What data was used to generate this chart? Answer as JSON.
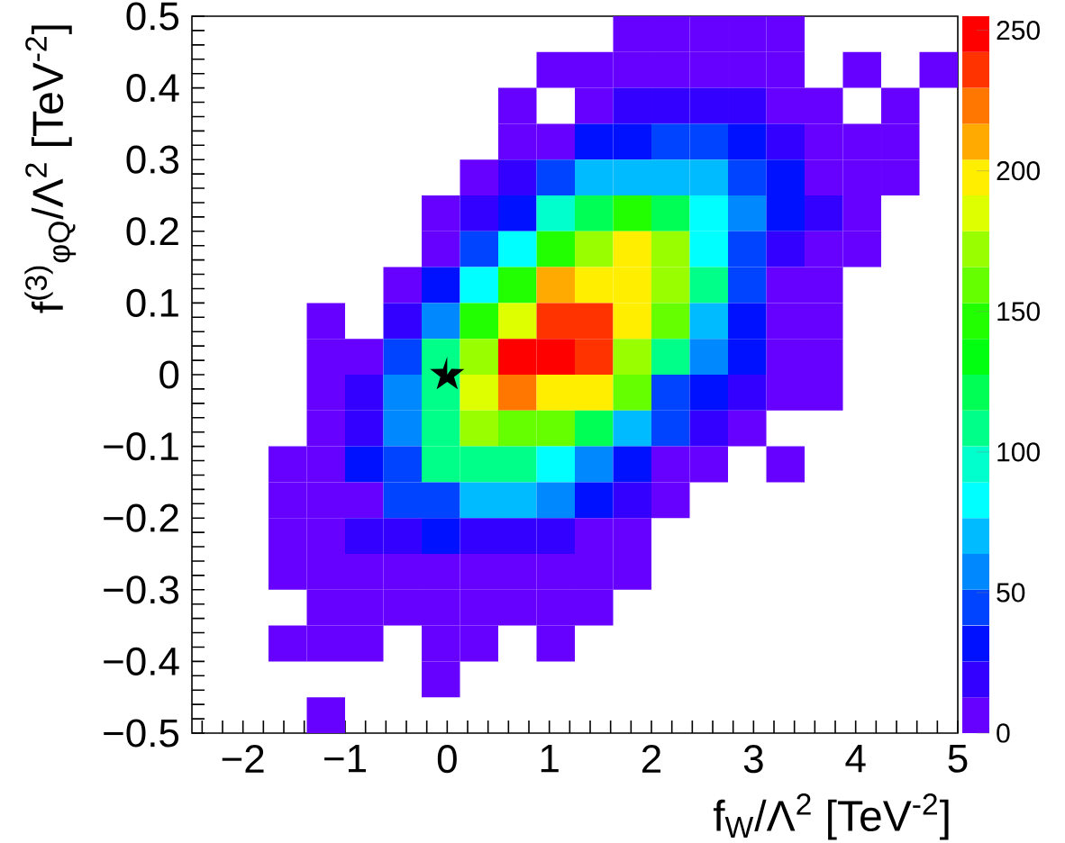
{
  "chart_data": {
    "type": "heatmap",
    "xlabel": "f$_{W}$/Λ$^{2}$ [TeV$^{-2}$]",
    "ylabel": "f$^{(3)}$$_{φQ}$/Λ$^{2}$ [TeV$^{-2}$]",
    "x": [
      -2.3125,
      -1.9375,
      -1.5625,
      -1.1875,
      -0.8125,
      -0.4375,
      -0.0625,
      0.3125,
      0.6875,
      1.0625,
      1.4375,
      1.8125,
      2.1875,
      2.5625,
      2.9375,
      3.3125,
      3.6875,
      4.0625,
      4.4375,
      4.8125
    ],
    "y": [
      0.475,
      0.425,
      0.375,
      0.325,
      0.275,
      0.225,
      0.175,
      0.125,
      0.075,
      0.025,
      -0.025,
      -0.075,
      -0.125,
      -0.175,
      -0.225,
      -0.275,
      -0.325,
      -0.375,
      -0.425,
      -0.475
    ],
    "cells": [
      [
        null,
        null,
        null,
        null,
        null,
        null,
        null,
        null,
        null,
        null,
        null,
        6,
        6,
        6,
        6,
        6,
        null,
        null,
        null,
        null
      ],
      [
        null,
        null,
        null,
        null,
        null,
        null,
        null,
        null,
        null,
        6,
        6,
        6,
        6,
        6,
        6,
        6,
        null,
        6,
        null,
        6
      ],
      [
        null,
        null,
        null,
        null,
        null,
        null,
        null,
        null,
        6,
        null,
        6,
        19,
        19,
        19,
        19,
        6,
        6,
        null,
        6,
        null
      ],
      [
        null,
        null,
        null,
        null,
        null,
        null,
        null,
        null,
        6,
        6,
        32,
        32,
        45,
        45,
        32,
        19,
        6,
        6,
        6,
        null
      ],
      [
        null,
        null,
        null,
        null,
        null,
        null,
        null,
        6,
        19,
        45,
        70,
        70,
        70,
        70,
        45,
        32,
        6,
        6,
        6,
        null
      ],
      [
        null,
        null,
        null,
        null,
        null,
        null,
        6,
        19,
        32,
        96,
        121,
        147,
        121,
        83,
        57,
        32,
        19,
        6,
        null,
        null
      ],
      [
        null,
        null,
        null,
        null,
        null,
        null,
        6,
        45,
        83,
        147,
        172,
        198,
        172,
        83,
        45,
        19,
        6,
        6,
        null,
        null
      ],
      [
        null,
        null,
        null,
        null,
        null,
        6,
        32,
        83,
        147,
        210,
        198,
        198,
        172,
        108,
        45,
        6,
        6,
        null,
        null,
        null
      ],
      [
        null,
        null,
        null,
        6,
        null,
        19,
        57,
        147,
        185,
        236,
        236,
        198,
        159,
        70,
        32,
        6,
        6,
        null,
        null,
        null
      ],
      [
        null,
        null,
        null,
        6,
        6,
        45,
        108,
        172,
        249,
        249,
        236,
        172,
        108,
        57,
        32,
        6,
        6,
        null,
        null,
        null
      ],
      [
        null,
        null,
        null,
        6,
        19,
        57,
        108,
        185,
        223,
        198,
        198,
        159,
        45,
        32,
        19,
        6,
        6,
        null,
        null,
        null
      ],
      [
        null,
        null,
        null,
        6,
        19,
        57,
        108,
        172,
        159,
        159,
        121,
        70,
        45,
        19,
        6,
        null,
        null,
        null,
        null,
        null
      ],
      [
        null,
        null,
        6,
        6,
        32,
        45,
        108,
        108,
        108,
        83,
        57,
        32,
        6,
        6,
        null,
        6,
        null,
        null,
        null,
        null
      ],
      [
        null,
        null,
        6,
        6,
        6,
        45,
        45,
        70,
        70,
        57,
        32,
        19,
        6,
        null,
        null,
        null,
        null,
        null,
        null,
        null
      ],
      [
        null,
        null,
        6,
        6,
        19,
        19,
        32,
        19,
        19,
        19,
        6,
        6,
        null,
        null,
        null,
        null,
        null,
        null,
        null,
        null
      ],
      [
        null,
        null,
        6,
        6,
        6,
        6,
        6,
        6,
        6,
        6,
        6,
        6,
        null,
        null,
        null,
        null,
        null,
        null,
        null,
        null
      ],
      [
        null,
        null,
        null,
        6,
        6,
        6,
        6,
        6,
        6,
        6,
        6,
        null,
        null,
        null,
        null,
        null,
        null,
        null,
        null,
        null
      ],
      [
        null,
        null,
        6,
        6,
        6,
        null,
        6,
        6,
        null,
        6,
        null,
        null,
        null,
        null,
        null,
        null,
        null,
        null,
        null,
        null
      ],
      [
        null,
        null,
        null,
        null,
        null,
        null,
        6,
        null,
        null,
        null,
        null,
        null,
        null,
        null,
        null,
        null,
        null,
        null,
        null,
        null
      ],
      [
        null,
        null,
        null,
        6,
        null,
        null,
        null,
        null,
        null,
        null,
        null,
        null,
        null,
        null,
        null,
        null,
        null,
        null,
        null,
        null
      ]
    ],
    "series": [
      {
        "type": "scatter",
        "x": [
          0
        ],
        "values": [
          0
        ],
        "color": "#000000",
        "marker": "star"
      }
    ],
    "xlim": [
      -2.5,
      5
    ],
    "ylim": [
      -0.5,
      0.5
    ],
    "xticks": [
      {
        "value": -2,
        "label": "−2"
      },
      {
        "value": -1,
        "label": "−1"
      },
      0,
      1,
      2,
      3,
      4,
      5,
      {
        "value": -2.4,
        "label": null
      },
      {
        "value": -2.2,
        "label": null
      },
      {
        "value": -1.8,
        "label": null
      },
      {
        "value": -1.6,
        "label": null
      },
      {
        "value": -1.4,
        "label": null
      },
      {
        "value": -1.2,
        "label": null
      },
      {
        "value": -0.8,
        "label": null
      },
      {
        "value": -0.6,
        "label": null
      },
      {
        "value": -0.4,
        "label": null
      },
      {
        "value": -0.2,
        "label": null
      },
      {
        "value": 0.2,
        "label": null
      },
      {
        "value": 0.4,
        "label": null
      },
      {
        "value": 0.6,
        "label": null
      },
      {
        "value": 0.8,
        "label": null
      },
      {
        "value": 1.2,
        "label": null
      },
      {
        "value": 1.4,
        "label": null
      },
      {
        "value": 1.6,
        "label": null
      },
      {
        "value": 1.8,
        "label": null
      },
      {
        "value": 2.2,
        "label": null
      },
      {
        "value": 2.4,
        "label": null
      },
      {
        "value": 2.6,
        "label": null
      },
      {
        "value": 2.8,
        "label": null
      },
      {
        "value": 3.2,
        "label": null
      },
      {
        "value": 3.4,
        "label": null
      },
      {
        "value": 3.6,
        "label": null
      },
      {
        "value": 3.8,
        "label": null
      },
      {
        "value": 4.2,
        "label": null
      },
      {
        "value": 4.4,
        "label": null
      },
      {
        "value": 4.6,
        "label": null
      },
      {
        "value": 4.8,
        "label": null
      }
    ],
    "yticks": [
      {
        "value": -0.5,
        "label": "−0.5"
      },
      {
        "value": -0.4,
        "label": "−0.4"
      },
      {
        "value": -0.3,
        "label": "−0.3"
      },
      {
        "value": -0.2,
        "label": "−0.2"
      },
      {
        "value": -0.1,
        "label": "−0.1"
      },
      0,
      0.1,
      0.2,
      0.3,
      0.4,
      0.5,
      {
        "value": -0.48,
        "label": null
      },
      {
        "value": -0.46,
        "label": null
      },
      {
        "value": -0.44,
        "label": null
      },
      {
        "value": -0.42,
        "label": null
      },
      {
        "value": -0.38,
        "label": null
      },
      {
        "value": -0.36,
        "label": null
      },
      {
        "value": -0.34,
        "label": null
      },
      {
        "value": -0.32,
        "label": null
      },
      {
        "value": -0.28,
        "label": null
      },
      {
        "value": -0.26,
        "label": null
      },
      {
        "value": -0.24,
        "label": null
      },
      {
        "value": -0.22,
        "label": null
      },
      {
        "value": -0.18,
        "label": null
      },
      {
        "value": -0.16,
        "label": null
      },
      {
        "value": -0.14,
        "label": null
      },
      {
        "value": -0.12,
        "label": null
      },
      {
        "value": -0.08,
        "label": null
      },
      {
        "value": -0.06,
        "label": null
      },
      {
        "value": -0.04,
        "label": null
      },
      {
        "value": -0.02,
        "label": null
      },
      {
        "value": 0.02,
        "label": null
      },
      {
        "value": 0.04,
        "label": null
      },
      {
        "value": 0.06,
        "label": null
      },
      {
        "value": 0.08,
        "label": null
      },
      {
        "value": 0.12,
        "label": null
      },
      {
        "value": 0.14,
        "label": null
      },
      {
        "value": 0.16,
        "label": null
      },
      {
        "value": 0.18,
        "label": null
      },
      {
        "value": 0.22,
        "label": null
      },
      {
        "value": 0.24,
        "label": null
      },
      {
        "value": 0.26,
        "label": null
      },
      {
        "value": 0.28,
        "label": null
      },
      {
        "value": 0.32,
        "label": null
      },
      {
        "value": 0.34,
        "label": null
      },
      {
        "value": 0.36,
        "label": null
      },
      {
        "value": 0.38,
        "label": null
      },
      {
        "value": 0.42,
        "label": null
      },
      {
        "value": 0.44,
        "label": null
      },
      {
        "value": 0.46,
        "label": null
      },
      {
        "value": 0.48,
        "label": null
      }
    ],
    "clim": [
      0,
      255
    ],
    "cticks": [
      0,
      50,
      100,
      150,
      200,
      250
    ],
    "grid": false
  }
}
